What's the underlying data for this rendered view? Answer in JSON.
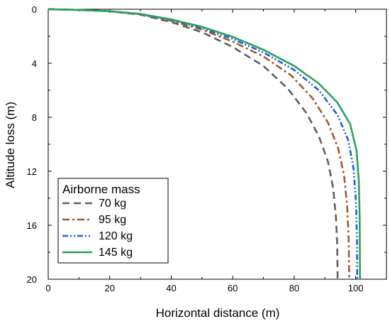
{
  "chart_data": {
    "type": "line",
    "title": "",
    "xlabel": "Horizontal distance (m)",
    "ylabel": "Altitude loss (m)",
    "xlim": [
      0,
      110
    ],
    "ylim": [
      0,
      20
    ],
    "y_inverted": true,
    "x_ticks": [
      0,
      20,
      40,
      60,
      80,
      100
    ],
    "y_ticks": [
      0,
      4,
      8,
      12,
      16,
      20
    ],
    "grid": false,
    "legend": {
      "title": "Airborne mass",
      "placement": "bottom-left"
    },
    "series": [
      {
        "name": "70 kg",
        "color": "#5f5f5f",
        "style": "dash",
        "points": [
          [
            0,
            0
          ],
          [
            10,
            0.05
          ],
          [
            20,
            0.15
          ],
          [
            30,
            0.4
          ],
          [
            40,
            0.95
          ],
          [
            50,
            1.7
          ],
          [
            60,
            2.8
          ],
          [
            70,
            4.2
          ],
          [
            78,
            5.9
          ],
          [
            84,
            7.7
          ],
          [
            88,
            9.4
          ],
          [
            91,
            11.3
          ],
          [
            92.7,
            13.3
          ],
          [
            93.6,
            15.5
          ],
          [
            94,
            17.5
          ],
          [
            94.1,
            20
          ]
        ]
      },
      {
        "name": "95 kg",
        "color": "#a05a2c",
        "style": "dashdot",
        "points": [
          [
            0,
            0
          ],
          [
            10,
            0.05
          ],
          [
            20,
            0.15
          ],
          [
            30,
            0.38
          ],
          [
            40,
            0.85
          ],
          [
            50,
            1.5
          ],
          [
            60,
            2.4
          ],
          [
            70,
            3.5
          ],
          [
            79,
            4.9
          ],
          [
            86,
            6.6
          ],
          [
            91,
            8.4
          ],
          [
            94.3,
            10.3
          ],
          [
            96.2,
            12.3
          ],
          [
            97.2,
            14.5
          ],
          [
            97.7,
            17
          ],
          [
            97.9,
            20
          ]
        ]
      },
      {
        "name": "120 kg",
        "color": "#1f5fd8",
        "style": "dashdotdot",
        "points": [
          [
            0,
            0
          ],
          [
            10,
            0.05
          ],
          [
            20,
            0.15
          ],
          [
            30,
            0.36
          ],
          [
            40,
            0.8
          ],
          [
            50,
            1.4
          ],
          [
            60,
            2.2
          ],
          [
            70,
            3.2
          ],
          [
            80,
            4.5
          ],
          [
            88,
            6.0
          ],
          [
            94,
            7.8
          ],
          [
            97.6,
            9.7
          ],
          [
            99.3,
            11.8
          ],
          [
            100.1,
            14.3
          ],
          [
            100.4,
            17
          ],
          [
            100.5,
            20
          ]
        ]
      },
      {
        "name": "145 kg",
        "color": "#2ca05a",
        "style": "solid",
        "points": [
          [
            0,
            0
          ],
          [
            10,
            0.05
          ],
          [
            20,
            0.15
          ],
          [
            30,
            0.35
          ],
          [
            40,
            0.75
          ],
          [
            50,
            1.3
          ],
          [
            60,
            2.05
          ],
          [
            70,
            3.0
          ],
          [
            80,
            4.2
          ],
          [
            88,
            5.5
          ],
          [
            94,
            6.9
          ],
          [
            98.2,
            8.5
          ],
          [
            100.3,
            10.5
          ],
          [
            101,
            12.7
          ],
          [
            101.3,
            15.5
          ],
          [
            101.4,
            20
          ]
        ]
      }
    ]
  }
}
